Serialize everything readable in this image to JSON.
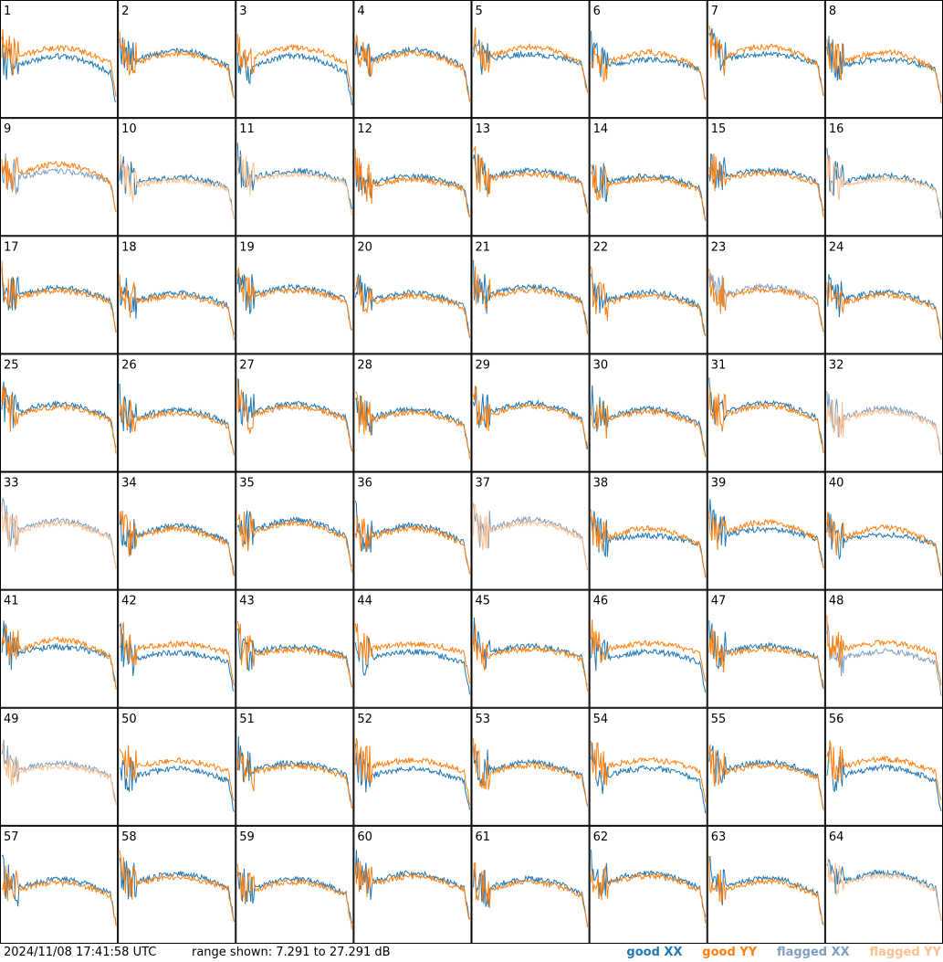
{
  "timestamp": "2024/11/08 17:41:58 UTC",
  "range_text": "range shown: 7.291 to 27.291 dB",
  "legend": [
    {
      "label": "good XX",
      "color": "#1f77b4"
    },
    {
      "label": "good YY",
      "color": "#ff7f0e"
    },
    {
      "label": "flagged XX",
      "color": "#7f9fbf"
    },
    {
      "label": "flagged YY",
      "color": "#ffbf8f"
    }
  ],
  "chart_data": {
    "type": "line",
    "grid": "8x8 small multiples",
    "ylim": [
      7.291,
      27.291
    ],
    "y_unit": "dB",
    "panel_labels": [
      "1",
      "2",
      "3",
      "4",
      "5",
      "6",
      "7",
      "8",
      "9",
      "10",
      "11",
      "12",
      "13",
      "14",
      "15",
      "16",
      "17",
      "18",
      "19",
      "20",
      "21",
      "22",
      "23",
      "24",
      "25",
      "26",
      "27",
      "28",
      "29",
      "30",
      "31",
      "32",
      "33",
      "34",
      "35",
      "36",
      "37",
      "38",
      "39",
      "40",
      "41",
      "42",
      "43",
      "44",
      "45",
      "46",
      "47",
      "48",
      "49",
      "50",
      "51",
      "52",
      "53",
      "54",
      "55",
      "56",
      "57",
      "58",
      "59",
      "60",
      "61",
      "62",
      "63",
      "64"
    ],
    "panel_styles": {
      "xx": [
        "n",
        "n",
        "n",
        "n",
        "n",
        "n",
        "n",
        "n",
        "f",
        "n",
        "n",
        "n",
        "n",
        "n",
        "n",
        "n",
        "n",
        "n",
        "n",
        "n",
        "n",
        "n",
        "f",
        "n",
        "n",
        "n",
        "n",
        "n",
        "n",
        "n",
        "n",
        "f",
        "f",
        "n",
        "n",
        "n",
        "f",
        "n",
        "n",
        "n",
        "n",
        "n",
        "n",
        "n",
        "n",
        "n",
        "n",
        "f",
        "f",
        "n",
        "n",
        "n",
        "n",
        "n",
        "n",
        "n",
        "n",
        "n",
        "n",
        "n",
        "n",
        "n",
        "n",
        "n"
      ],
      "yy": [
        "n",
        "n",
        "n",
        "n",
        "n",
        "n",
        "n",
        "n",
        "n",
        "f",
        "f",
        "n",
        "n",
        "n",
        "n",
        "f",
        "n",
        "n",
        "n",
        "n",
        "n",
        "n",
        "n",
        "n",
        "n",
        "n",
        "n",
        "n",
        "n",
        "n",
        "n",
        "f",
        "f",
        "n",
        "n",
        "n",
        "f",
        "n",
        "n",
        "n",
        "n",
        "n",
        "n",
        "n",
        "n",
        "n",
        "n",
        "n",
        "f",
        "n",
        "n",
        "n",
        "n",
        "n",
        "n",
        "n",
        "n",
        "n",
        "n",
        "n",
        "n",
        "n",
        "n",
        "f"
      ]
    }
  }
}
